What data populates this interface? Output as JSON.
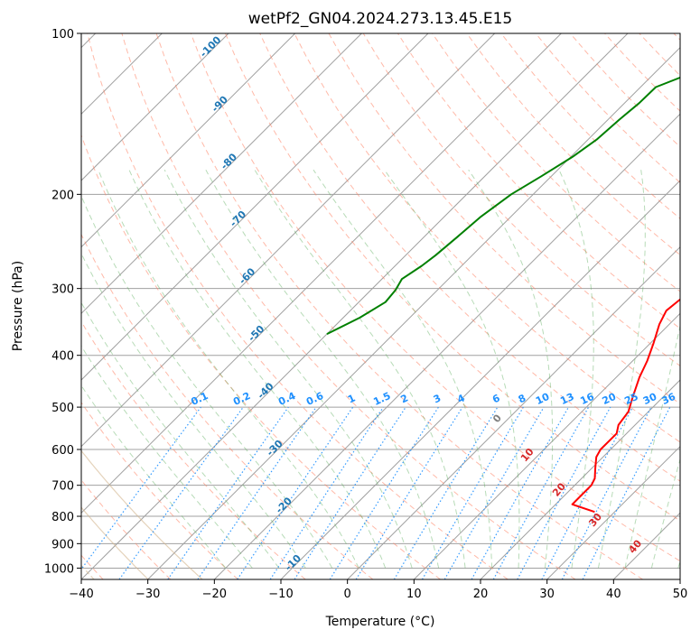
{
  "chart_data": {
    "type": "line",
    "title": "wetPf2_GN04.2024.273.13.45.E15",
    "xlabel": "Temperature (°C)",
    "ylabel": "Pressure (hPa)",
    "xlim": [
      -40,
      50
    ],
    "ylim": [
      1050,
      100
    ],
    "y_scale": "log",
    "x_ticks": [
      -40,
      -30,
      -20,
      -10,
      0,
      10,
      20,
      30,
      40,
      50
    ],
    "y_ticks": [
      100,
      200,
      300,
      400,
      500,
      600,
      700,
      800,
      900,
      1000
    ],
    "grid": true,
    "series": [
      {
        "role": "temperature",
        "color": "#ff0000",
        "points": [
          [
            785,
            27.0
          ],
          [
            760,
            22.5
          ],
          [
            740,
            22.5
          ],
          [
            700,
            22.5
          ],
          [
            680,
            22.0
          ],
          [
            650,
            20.5
          ],
          [
            620,
            19.0
          ],
          [
            600,
            18.5
          ],
          [
            560,
            18.5
          ],
          [
            540,
            17.5
          ],
          [
            510,
            17.0
          ],
          [
            480,
            15.5
          ],
          [
            440,
            13.5
          ],
          [
            410,
            12.2
          ],
          [
            380,
            10.5
          ],
          [
            350,
            8.5
          ],
          [
            330,
            7.5
          ],
          [
            310,
            8.0
          ],
          [
            290,
            9.0
          ],
          [
            270,
            9.2
          ],
          [
            250,
            8.2
          ],
          [
            230,
            7.6
          ],
          [
            210,
            8.2
          ],
          [
            195,
            9.2
          ],
          [
            180,
            9.7
          ],
          [
            165,
            10.0
          ],
          [
            150,
            11.0
          ],
          [
            140,
            11.8
          ],
          [
            130,
            12.5
          ],
          [
            122,
            12.5
          ],
          [
            116,
            13.5
          ],
          [
            110,
            15.0
          ],
          [
            105,
            17.0
          ],
          [
            100,
            18.0
          ]
        ]
      },
      {
        "role": "dewpoint",
        "color": "#008000",
        "points": [
          [
            365,
            -40.0
          ],
          [
            340,
            -37.5
          ],
          [
            318,
            -36.0
          ],
          [
            302,
            -36.3
          ],
          [
            288,
            -37.0
          ],
          [
            272,
            -36.0
          ],
          [
            260,
            -35.5
          ],
          [
            240,
            -35.0
          ],
          [
            220,
            -34.5
          ],
          [
            200,
            -33.3
          ],
          [
            185,
            -31.5
          ],
          [
            170,
            -29.7
          ],
          [
            158,
            -28.7
          ],
          [
            145,
            -28.3
          ],
          [
            135,
            -27.8
          ],
          [
            126,
            -27.7
          ],
          [
            121,
            -25.5
          ],
          [
            119,
            -22.0
          ],
          [
            118,
            -16.0
          ],
          [
            117,
            -10.0
          ],
          [
            115,
            -6.0
          ],
          [
            112,
            -4.5
          ],
          [
            109,
            -5.0
          ],
          [
            107,
            -10.0
          ],
          [
            105,
            -15.0
          ],
          [
            104,
            -18.0
          ],
          [
            101,
            -16.0
          ],
          [
            100,
            -15.0
          ]
        ]
      }
    ],
    "isotherm_labels": [
      "-100",
      "-90",
      "-80",
      "-70",
      "-60",
      "-50",
      "-40",
      "-30",
      "-20",
      "-10"
    ],
    "mixing_ratio_labels": [
      "0.1",
      "0.2",
      "0.4",
      "0.6",
      "1",
      "1.5",
      "2",
      "3",
      "4",
      "6",
      "8",
      "10",
      "13",
      "16",
      "20",
      "25",
      "30",
      "36"
    ],
    "dry_adiabat_labels": [
      "0",
      "10",
      "20",
      "30",
      "40"
    ],
    "colors": {
      "isotherm_label": "#1f77b4",
      "mixing_ratio": "#1e90ff",
      "dry_adiabat_label": "#d62728",
      "zero_label": "#7f7f7f",
      "dry_adiabat": "#ff8060",
      "moist_adiabat": "#60b060",
      "grid": "#a0a0a0",
      "theta_lines": "#d2b48c"
    }
  }
}
